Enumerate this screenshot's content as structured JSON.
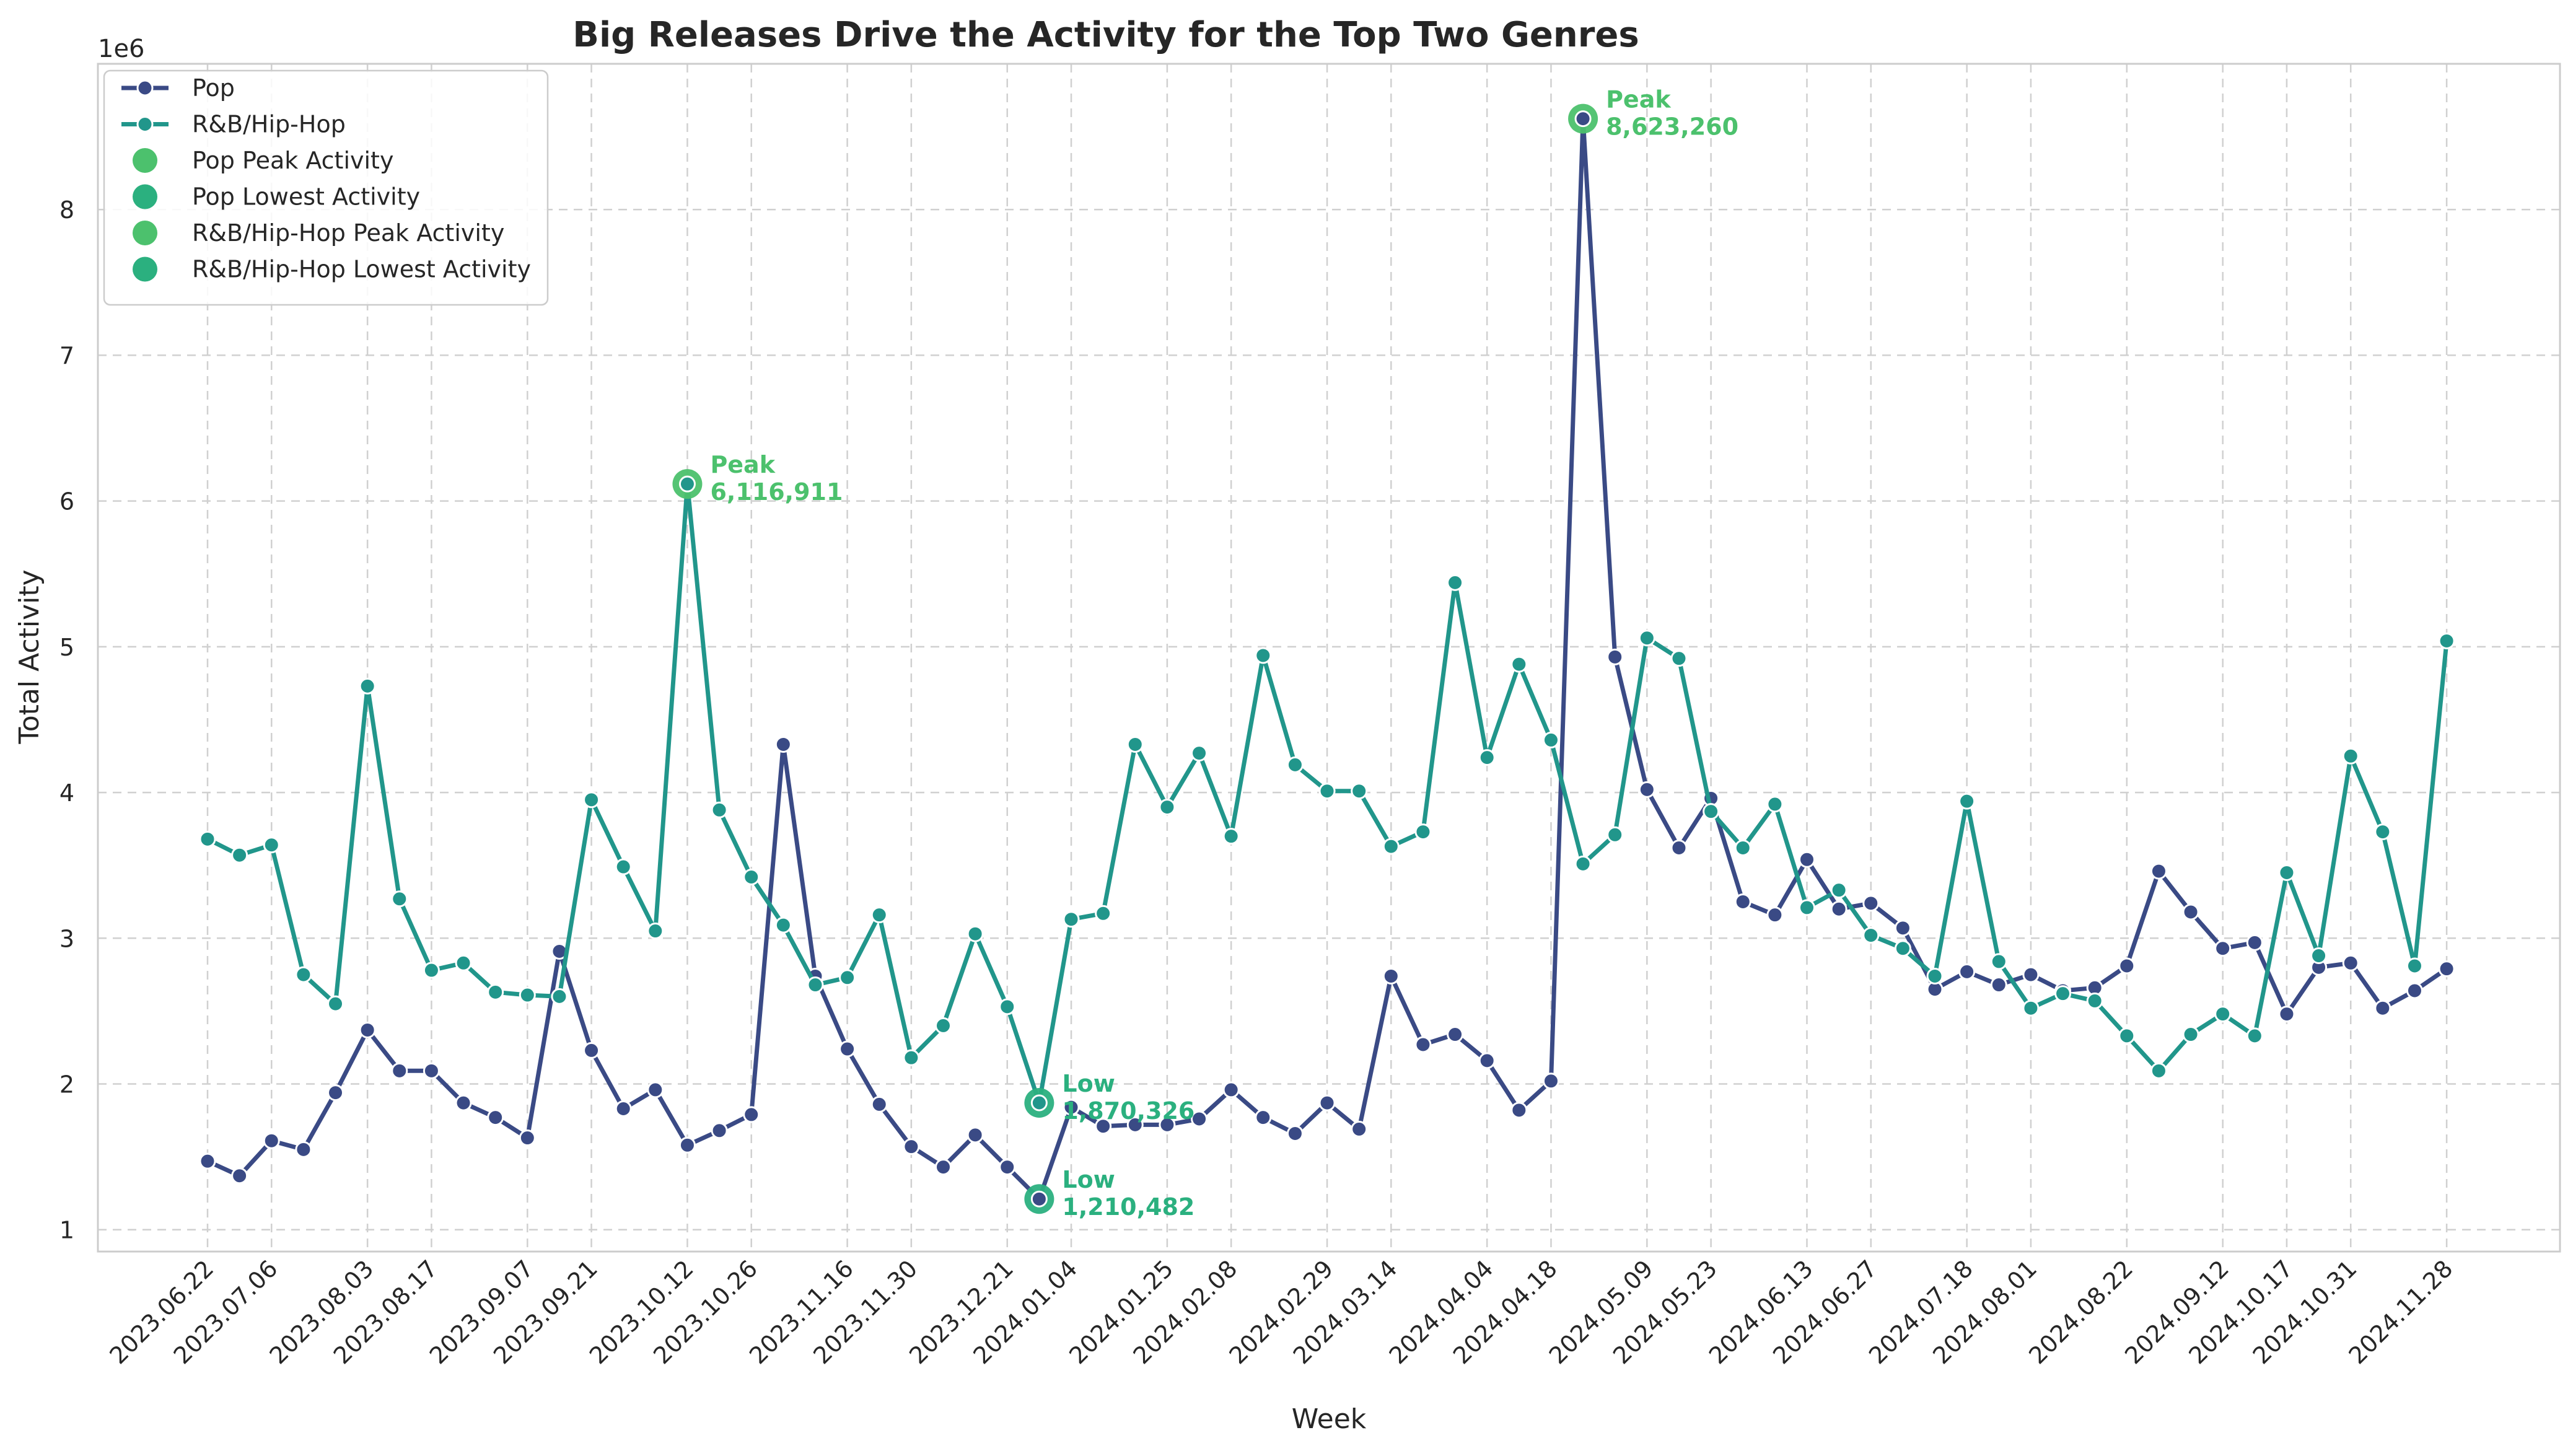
{
  "colors": {
    "pop": "#3a4a85",
    "rnb": "#21968b",
    "peak": "#4cc16d",
    "low": "#2bb07f",
    "grid": "#d0d0d0",
    "spine": "#cccccc",
    "text": "#262626"
  },
  "chart_data": {
    "type": "line",
    "title": "Big Releases Drive the Activity for the Top Two Genres",
    "xlabel": "Week",
    "ylabel": "Total Activity",
    "y_offset_label": "1e6",
    "ylim": [
      0.85,
      9.0
    ],
    "y_ticks": [
      1,
      2,
      3,
      4,
      5,
      6,
      7,
      8
    ],
    "grid": true,
    "legend_position": "top-left",
    "x_tick_labels": [
      "2023.06.22",
      "2023.07.06",
      "2023.08.03",
      "2023.08.17",
      "2023.09.07",
      "2023.09.21",
      "2023.10.12",
      "2023.10.26",
      "2023.11.16",
      "2023.11.30",
      "2023.12.21",
      "2024.01.04",
      "2024.01.25",
      "2024.02.08",
      "2024.02.29",
      "2024.03.14",
      "2024.04.04",
      "2024.04.18",
      "2024.05.09",
      "2024.05.23",
      "2024.06.13",
      "2024.06.27",
      "2024.07.18",
      "2024.08.01",
      "2024.08.22",
      "2024.09.12",
      "2024.10.17",
      "2024.10.31",
      "2024.11.28"
    ],
    "x_tick_index": [
      0,
      2,
      5,
      7,
      10,
      12,
      15,
      17,
      20,
      22,
      25,
      27,
      30,
      32,
      35,
      37,
      40,
      42,
      45,
      47,
      50,
      52,
      55,
      57,
      60,
      63,
      65,
      67,
      70
    ],
    "legend": [
      {
        "label": "Pop",
        "kind": "line",
        "color_key": "pop"
      },
      {
        "label": "R&B/Hip-Hop",
        "kind": "line",
        "color_key": "rnb"
      },
      {
        "label": "Pop Peak Activity",
        "kind": "dot",
        "color_key": "peak"
      },
      {
        "label": "Pop Lowest Activity",
        "kind": "dot",
        "color_key": "low"
      },
      {
        "label": "R&B/Hip-Hop Peak Activity",
        "kind": "dot",
        "color_key": "peak"
      },
      {
        "label": "R&B/Hip-Hop Lowest Activity",
        "kind": "dot",
        "color_key": "low"
      }
    ],
    "series": [
      {
        "name": "Pop",
        "color_key": "pop",
        "values": [
          1.47,
          1.37,
          1.61,
          1.55,
          1.94,
          2.37,
          2.09,
          2.09,
          1.87,
          1.77,
          1.63,
          2.91,
          2.23,
          1.83,
          1.96,
          1.58,
          1.68,
          1.79,
          4.33,
          2.74,
          2.24,
          1.86,
          1.57,
          1.43,
          1.65,
          1.43,
          1.210482,
          1.84,
          1.71,
          1.72,
          1.72,
          1.76,
          1.96,
          1.77,
          1.66,
          1.87,
          1.69,
          2.74,
          2.27,
          2.34,
          2.16,
          1.82,
          2.02,
          8.62326,
          4.93,
          4.02,
          3.62,
          3.96,
          3.25,
          3.16,
          3.54,
          3.2,
          3.24,
          3.07,
          2.65,
          2.77,
          2.68,
          2.75,
          2.64,
          2.66,
          2.81,
          3.46,
          3.18,
          2.93,
          2.97,
          2.48,
          2.8,
          2.83,
          2.52,
          2.64,
          2.79
        ]
      },
      {
        "name": "R&B/Hip-Hop",
        "color_key": "rnb",
        "values": [
          3.68,
          3.57,
          3.64,
          2.75,
          2.55,
          4.73,
          3.27,
          2.78,
          2.83,
          2.63,
          2.61,
          2.6,
          3.95,
          3.49,
          3.05,
          6.116911,
          3.88,
          3.42,
          3.09,
          2.68,
          2.73,
          3.16,
          2.18,
          2.4,
          3.03,
          2.53,
          1.870326,
          3.13,
          3.17,
          4.33,
          3.9,
          4.27,
          3.7,
          4.94,
          4.19,
          4.01,
          4.01,
          3.63,
          3.73,
          5.44,
          4.24,
          4.88,
          4.36,
          3.51,
          3.71,
          5.06,
          4.92,
          3.87,
          3.62,
          3.92,
          3.21,
          3.33,
          3.02,
          2.93,
          2.74,
          3.94,
          2.84,
          2.52,
          2.62,
          2.57,
          2.33,
          2.09,
          2.34,
          2.48,
          2.33,
          3.45,
          2.88,
          4.25,
          3.73,
          2.81,
          5.04
        ]
      }
    ],
    "annotations": [
      {
        "series": "Pop",
        "kind": "peak",
        "index": 43,
        "value": 8.62326,
        "label_top": "Peak",
        "label_bottom": "8,623,260"
      },
      {
        "series": "Pop",
        "kind": "low",
        "index": 26,
        "value": 1.210482,
        "label_top": "Low",
        "label_bottom": "1,210,482"
      },
      {
        "series": "R&B/Hip-Hop",
        "kind": "peak",
        "index": 15,
        "value": 6.116911,
        "label_top": "Peak",
        "label_bottom": "6,116,911"
      },
      {
        "series": "R&B/Hip-Hop",
        "kind": "low",
        "index": 26,
        "value": 1.870326,
        "label_top": "Low",
        "label_bottom": "1,870,326"
      }
    ]
  }
}
